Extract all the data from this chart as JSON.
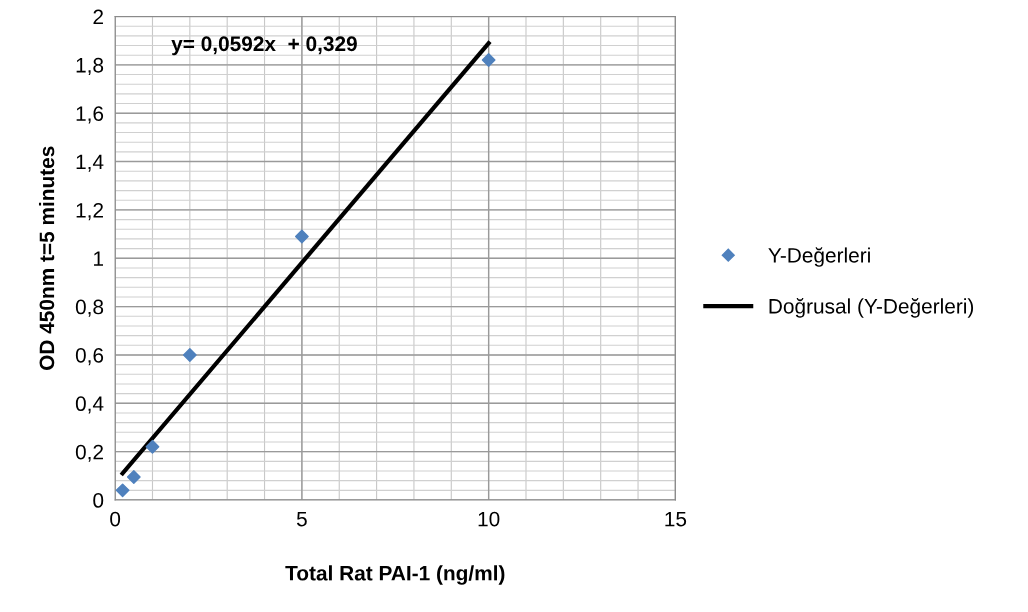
{
  "chart_data": {
    "type": "scatter",
    "xlabel": "Total Rat PAI-1 (ng/ml)",
    "ylabel": "OD 450nm t=5 minutes",
    "series": [
      {
        "name": "Y-Değerleri",
        "color": "#4f81bd",
        "marker": "diamond",
        "x": [
          0.2,
          0.5,
          1,
          2,
          5,
          10
        ],
        "values": [
          0.04,
          0.095,
          0.22,
          0.6,
          1.09,
          1.82
        ]
      },
      {
        "name": "Doğrusal (Y-Değerleri)",
        "type": "line",
        "color": "#000000",
        "marker": "none",
        "line_style": "solid",
        "x": [
          0.2,
          10
        ],
        "values": [
          0.11,
          1.89
        ]
      }
    ],
    "annotations": [
      "y= 0,0592x  + 0,329"
    ],
    "xlim": [
      0,
      15
    ],
    "xticks": [
      0,
      5,
      10,
      15
    ],
    "ylim": [
      0,
      2
    ],
    "yticks": [
      0,
      {
        "value": 0.2,
        "label": "0,2"
      },
      {
        "value": 0.4,
        "label": "0,4"
      },
      {
        "value": 0.6,
        "label": "0,6"
      },
      {
        "value": 0.8,
        "label": "0,8"
      },
      1,
      {
        "value": 1.2,
        "label": "1,2"
      },
      {
        "value": 1.4,
        "label": "1,4"
      },
      {
        "value": 1.6,
        "label": "1,6"
      },
      {
        "value": 1.8,
        "label": "1,8"
      },
      2
    ],
    "grid": true,
    "legend": "right"
  }
}
